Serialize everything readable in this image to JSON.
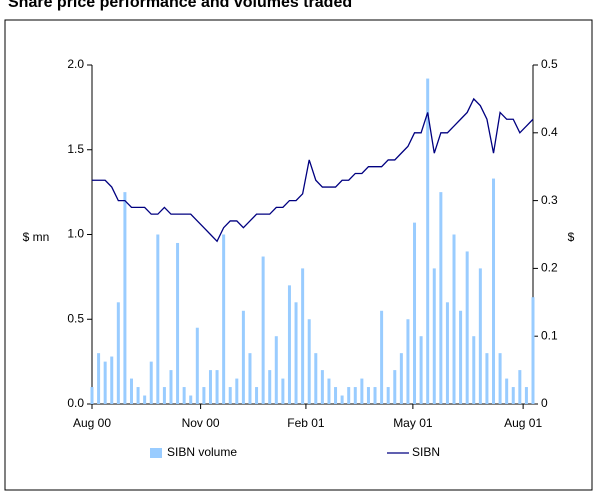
{
  "chart_data": {
    "type": "combo",
    "title": "Share price performance and volumes traded",
    "y_label": "$ mn",
    "y2_label": "$",
    "x": [
      0,
      4,
      8,
      12,
      16,
      20,
      24,
      28,
      32,
      36,
      40,
      44,
      48,
      52,
      56,
      60,
      64,
      68,
      72,
      76,
      80,
      84,
      88,
      92,
      96,
      100,
      104,
      108,
      112,
      116,
      120,
      124,
      128,
      132,
      136,
      140,
      144,
      148,
      152,
      156,
      160,
      164,
      168,
      172,
      176,
      180,
      184,
      188,
      192,
      196,
      200,
      204,
      208,
      212,
      216,
      220,
      224,
      228,
      232,
      236,
      240,
      244,
      248,
      252,
      256,
      260,
      264,
      268
    ],
    "xlim": [
      0,
      268
    ],
    "xticks": [
      {
        "value": 0,
        "label": "Aug 00"
      },
      {
        "value": 66,
        "label": "Nov 00"
      },
      {
        "value": 130,
        "label": "Feb 01"
      },
      {
        "value": 195,
        "label": "May 01"
      },
      {
        "value": 262,
        "label": "Aug 01"
      }
    ],
    "ylim": [
      0,
      2
    ],
    "yticks": [
      {
        "value": 0,
        "label": "0.0"
      },
      {
        "value": 0.5,
        "label": "0.5"
      },
      {
        "value": 1,
        "label": "1.0"
      },
      {
        "value": 1.5,
        "label": "1.5"
      },
      {
        "value": 2,
        "label": "2.0"
      }
    ],
    "y2lim": [
      0,
      0.5
    ],
    "y2ticks": [
      0,
      0.1,
      0.2,
      0.3,
      0.4,
      0.5
    ],
    "grid": false,
    "series": [
      {
        "name": "SIBN volume",
        "type": "bar",
        "color": "#99ccff",
        "values": [
          0.1,
          0.3,
          0.25,
          0.28,
          0.6,
          1.25,
          0.15,
          0.1,
          0.05,
          0.25,
          1.0,
          0.1,
          0.2,
          0.95,
          0.1,
          0.05,
          0.45,
          0.1,
          0.2,
          0.2,
          1.0,
          0.1,
          0.15,
          0.55,
          0.3,
          0.1,
          0.87,
          0.2,
          0.4,
          0.15,
          0.7,
          0.6,
          0.8,
          0.5,
          0.3,
          0.2,
          0.15,
          0.1,
          0.05,
          0.1,
          0.1,
          0.15,
          0.1,
          0.1,
          0.55,
          0.1,
          0.2,
          0.3,
          0.5,
          1.07,
          0.4,
          1.92,
          0.8,
          1.25,
          0.6,
          1.0,
          0.55,
          0.9,
          0.4,
          0.8,
          0.3,
          1.33,
          0.3,
          0.15,
          0.1,
          0.2,
          0.1,
          0.63
        ]
      },
      {
        "name": "SIBN",
        "type": "line",
        "axis": "y2",
        "color": "#000080",
        "values": [
          0.33,
          0.33,
          0.33,
          0.32,
          0.3,
          0.3,
          0.29,
          0.29,
          0.29,
          0.28,
          0.28,
          0.29,
          0.28,
          0.28,
          0.28,
          0.28,
          0.27,
          0.26,
          0.25,
          0.24,
          0.26,
          0.27,
          0.27,
          0.26,
          0.27,
          0.28,
          0.28,
          0.28,
          0.29,
          0.29,
          0.3,
          0.3,
          0.31,
          0.36,
          0.33,
          0.32,
          0.32,
          0.32,
          0.33,
          0.33,
          0.34,
          0.34,
          0.35,
          0.35,
          0.35,
          0.36,
          0.36,
          0.37,
          0.38,
          0.4,
          0.4,
          0.43,
          0.37,
          0.4,
          0.4,
          0.41,
          0.42,
          0.43,
          0.45,
          0.44,
          0.42,
          0.37,
          0.43,
          0.42,
          0.42,
          0.4,
          0.41,
          0.42
        ]
      }
    ]
  }
}
